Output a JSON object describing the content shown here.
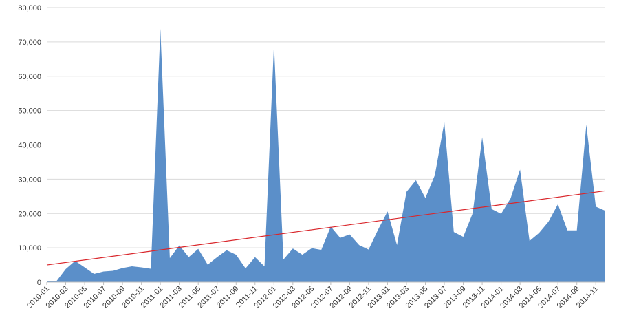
{
  "colors": {
    "area": "#5b8fc9",
    "trend": "#d9262b",
    "grid": "#d9d9d9"
  },
  "chart_data": {
    "type": "area",
    "title": "",
    "xlabel": "",
    "ylabel": "",
    "ylim": [
      0,
      80000
    ],
    "y_ticks": [
      0,
      10000,
      20000,
      30000,
      40000,
      50000,
      60000,
      70000,
      80000
    ],
    "y_tick_labels": [
      "0",
      "10,000",
      "20,000",
      "30,000",
      "40,000",
      "50,000",
      "60,000",
      "70,000",
      "80,000"
    ],
    "grid": true,
    "legend": "none",
    "x": [
      "2010-01",
      "2010-02",
      "2010-03",
      "2010-04",
      "2010-05",
      "2010-06",
      "2010-07",
      "2010-08",
      "2010-09",
      "2010-10",
      "2010-11",
      "2010-12",
      "2011-01",
      "2011-02",
      "2011-03",
      "2011-04",
      "2011-05",
      "2011-06",
      "2011-07",
      "2011-08",
      "2011-09",
      "2011-10",
      "2011-11",
      "2011-12",
      "2012-01",
      "2012-02",
      "2012-03",
      "2012-04",
      "2012-05",
      "2012-06",
      "2012-07",
      "2012-08",
      "2012-09",
      "2012-10",
      "2012-11",
      "2012-12",
      "2013-01",
      "2013-02",
      "2013-03",
      "2013-04",
      "2013-05",
      "2013-06",
      "2013-07",
      "2013-08",
      "2013-09",
      "2013-10",
      "2013-11",
      "2013-12",
      "2014-01",
      "2014-02",
      "2014-03",
      "2014-04",
      "2014-05",
      "2014-06",
      "2014-07",
      "2014-08",
      "2014-09",
      "2014-10",
      "2014-11",
      "2014-12"
    ],
    "x_tick_labels": [
      "2010-01",
      "2010-03",
      "2010-05",
      "2010-07",
      "2010-09",
      "2010-11",
      "2011-01",
      "2011-03",
      "2011-05",
      "2011-07",
      "2011-09",
      "2011-11",
      "2012-01",
      "2012-03",
      "2012-05",
      "2012-07",
      "2012-09",
      "2012-11",
      "2013-01",
      "2013-03",
      "2013-05",
      "2013-07",
      "2013-09",
      "2013-11",
      "2014-01",
      "2014-03",
      "2014-05",
      "2014-07",
      "2014-09",
      "2014-11"
    ],
    "series": [
      {
        "type": "area",
        "values": [
          300,
          200,
          3800,
          6200,
          4300,
          2400,
          3100,
          3300,
          4100,
          4600,
          4300,
          3900,
          73800,
          7000,
          10700,
          7300,
          9700,
          5100,
          7300,
          9300,
          8000,
          4000,
          7300,
          4600,
          69300,
          6600,
          9800,
          8000,
          9900,
          9400,
          16200,
          12900,
          13900,
          10800,
          9500,
          15300,
          20600,
          10800,
          26300,
          29700,
          24500,
          31200,
          46600,
          14600,
          13200,
          20100,
          42200,
          21300,
          19900,
          24400,
          32800,
          12000,
          14300,
          17600,
          22700,
          15100,
          15100,
          45900,
          22000,
          20800
        ]
      },
      {
        "type": "trendline",
        "start": 5000,
        "end": 26600
      }
    ]
  }
}
